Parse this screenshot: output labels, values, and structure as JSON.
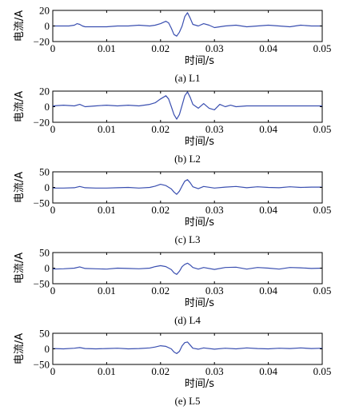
{
  "chart_data": [
    {
      "type": "line",
      "caption": "(a)  L1",
      "xlabel": "时间/s",
      "ylabel": "电流/A",
      "xlim": [
        0,
        0.05
      ],
      "ylim": [
        -20,
        20
      ],
      "xticks": [
        0,
        0.01,
        0.02,
        0.03,
        0.04,
        0.05
      ],
      "xtick_labels": [
        "0",
        "0.01",
        "0.02",
        "0.03",
        "0.04",
        "0.05"
      ],
      "yticks": [
        -20,
        0,
        20
      ],
      "ytick_labels": [
        "−20",
        "0",
        "20"
      ],
      "grid": false,
      "color": "#3a4fb0",
      "series": [
        {
          "x": [
            0,
            0.003,
            0.004,
            0.0045,
            0.005,
            0.0055,
            0.006,
            0.008,
            0.01,
            0.012,
            0.014,
            0.016,
            0.018,
            0.019,
            0.02,
            0.021,
            0.0215,
            0.022,
            0.0225,
            0.023,
            0.0235,
            0.024,
            0.0245,
            0.025,
            0.0255,
            0.026,
            0.027,
            0.028,
            0.029,
            0.03,
            0.032,
            0.034,
            0.036,
            0.038,
            0.04,
            0.042,
            0.044,
            0.046,
            0.048,
            0.05
          ],
          "y": [
            0,
            0,
            1,
            3,
            2,
            0,
            -1,
            -1,
            -1,
            0,
            0,
            1,
            0,
            1,
            3,
            6,
            4,
            -3,
            -11,
            -13,
            -8,
            0,
            12,
            17,
            10,
            2,
            0,
            3,
            1,
            -2,
            0,
            1,
            -1,
            0,
            1,
            0,
            -1,
            1,
            0,
            0
          ]
        }
      ]
    },
    {
      "type": "line",
      "caption": "(b)  L2",
      "xlabel": "时间/s",
      "ylabel": "电流/A",
      "xlim": [
        0,
        0.05
      ],
      "ylim": [
        -20,
        20
      ],
      "xticks": [
        0,
        0.01,
        0.02,
        0.03,
        0.04,
        0.05
      ],
      "xtick_labels": [
        "0",
        "0.01",
        "0.02",
        "0.03",
        "0.04",
        "0.05"
      ],
      "yticks": [
        -20,
        0,
        20
      ],
      "ytick_labels": [
        "−20",
        "0",
        "20"
      ],
      "grid": false,
      "color": "#3a4fb0",
      "series": [
        {
          "x": [
            0,
            0.002,
            0.004,
            0.005,
            0.006,
            0.008,
            0.01,
            0.012,
            0.014,
            0.016,
            0.018,
            0.019,
            0.02,
            0.021,
            0.0215,
            0.022,
            0.0225,
            0.023,
            0.0235,
            0.024,
            0.0245,
            0.025,
            0.0255,
            0.026,
            0.027,
            0.028,
            0.029,
            0.03,
            0.031,
            0.032,
            0.033,
            0.034,
            0.036,
            0.04,
            0.045,
            0.05
          ],
          "y": [
            1,
            2,
            1,
            3,
            0,
            1,
            2,
            1,
            2,
            1,
            3,
            5,
            10,
            14,
            10,
            0,
            -10,
            -16,
            -10,
            2,
            14,
            19,
            12,
            3,
            -2,
            4,
            -2,
            -4,
            3,
            0,
            2,
            0,
            1,
            1,
            1,
            1
          ]
        }
      ]
    },
    {
      "type": "line",
      "caption": "(c)  L3",
      "xlabel": "时间/s",
      "ylabel": "电流/A",
      "xlim": [
        0,
        0.05
      ],
      "ylim": [
        -50,
        50
      ],
      "xticks": [
        0,
        0.01,
        0.02,
        0.03,
        0.04,
        0.05
      ],
      "xtick_labels": [
        "0",
        "0.01",
        "0.02",
        "0.03",
        "0.04",
        "0.05"
      ],
      "yticks": [
        -50,
        0,
        50
      ],
      "ytick_labels": [
        "−50",
        "0",
        "50"
      ],
      "grid": false,
      "color": "#3a4fb0",
      "series": [
        {
          "x": [
            0,
            0.002,
            0.004,
            0.005,
            0.006,
            0.008,
            0.01,
            0.012,
            0.014,
            0.016,
            0.018,
            0.019,
            0.02,
            0.021,
            0.022,
            0.0225,
            0.023,
            0.0235,
            0.024,
            0.0245,
            0.025,
            0.0255,
            0.026,
            0.027,
            0.028,
            0.03,
            0.032,
            0.034,
            0.036,
            0.038,
            0.04,
            0.042,
            0.044,
            0.046,
            0.048,
            0.05
          ],
          "y": [
            -2,
            -2,
            -1,
            3,
            -1,
            -2,
            -2,
            -1,
            0,
            -2,
            0,
            4,
            10,
            6,
            -5,
            -15,
            -22,
            -12,
            5,
            20,
            25,
            15,
            2,
            -4,
            3,
            -2,
            1,
            3,
            -1,
            2,
            0,
            -1,
            2,
            0,
            1,
            1
          ]
        }
      ]
    },
    {
      "type": "line",
      "caption": "(d)  L4",
      "xlabel": "时间/s",
      "ylabel": "电流/A",
      "xlim": [
        0,
        0.05
      ],
      "ylim": [
        -50,
        50
      ],
      "xticks": [
        0,
        0.01,
        0.02,
        0.03,
        0.04,
        0.05
      ],
      "xtick_labels": [
        "0",
        "0.01",
        "0.02",
        "0.03",
        "0.04",
        "0.05"
      ],
      "yticks": [
        -50,
        0,
        50
      ],
      "ytick_labels": [
        "−50",
        "0",
        "50"
      ],
      "grid": false,
      "color": "#3a4fb0",
      "series": [
        {
          "x": [
            0,
            0.002,
            0.004,
            0.005,
            0.006,
            0.008,
            0.01,
            0.012,
            0.014,
            0.016,
            0.018,
            0.019,
            0.02,
            0.021,
            0.022,
            0.0225,
            0.023,
            0.0235,
            0.024,
            0.0245,
            0.025,
            0.0255,
            0.026,
            0.027,
            0.028,
            0.03,
            0.032,
            0.034,
            0.036,
            0.038,
            0.04,
            0.042,
            0.044,
            0.046,
            0.048,
            0.05
          ],
          "y": [
            -3,
            -2,
            0,
            4,
            -1,
            -2,
            -3,
            0,
            -1,
            -2,
            0,
            5,
            8,
            5,
            -5,
            -15,
            -20,
            -10,
            5,
            12,
            16,
            10,
            2,
            -3,
            2,
            -4,
            2,
            3,
            -3,
            2,
            0,
            -3,
            2,
            1,
            -1,
            0
          ]
        }
      ]
    },
    {
      "type": "line",
      "caption": "(e)  L5",
      "xlabel": "时间/s",
      "ylabel": "电流/A",
      "xlim": [
        0,
        0.05
      ],
      "ylim": [
        -50,
        50
      ],
      "xticks": [
        0,
        0.01,
        0.02,
        0.03,
        0.04,
        0.05
      ],
      "xtick_labels": [
        "0",
        "0.01",
        "0.02",
        "0.03",
        "0.04",
        "0.05"
      ],
      "yticks": [
        -50,
        0,
        50
      ],
      "ytick_labels": [
        "−50",
        "0",
        "50"
      ],
      "grid": false,
      "color": "#3a4fb0",
      "series": [
        {
          "x": [
            0,
            0.002,
            0.004,
            0.005,
            0.006,
            0.008,
            0.01,
            0.012,
            0.014,
            0.016,
            0.018,
            0.019,
            0.02,
            0.021,
            0.022,
            0.0225,
            0.023,
            0.0235,
            0.024,
            0.0245,
            0.025,
            0.0255,
            0.026,
            0.027,
            0.028,
            0.03,
            0.032,
            0.034,
            0.036,
            0.038,
            0.04,
            0.042,
            0.044,
            0.046,
            0.048,
            0.05
          ],
          "y": [
            1,
            0,
            2,
            4,
            1,
            0,
            1,
            2,
            0,
            1,
            3,
            6,
            10,
            8,
            0,
            -10,
            -15,
            -8,
            10,
            20,
            22,
            12,
            2,
            -1,
            3,
            -1,
            2,
            0,
            3,
            1,
            0,
            2,
            1,
            3,
            1,
            2
          ]
        }
      ]
    }
  ]
}
